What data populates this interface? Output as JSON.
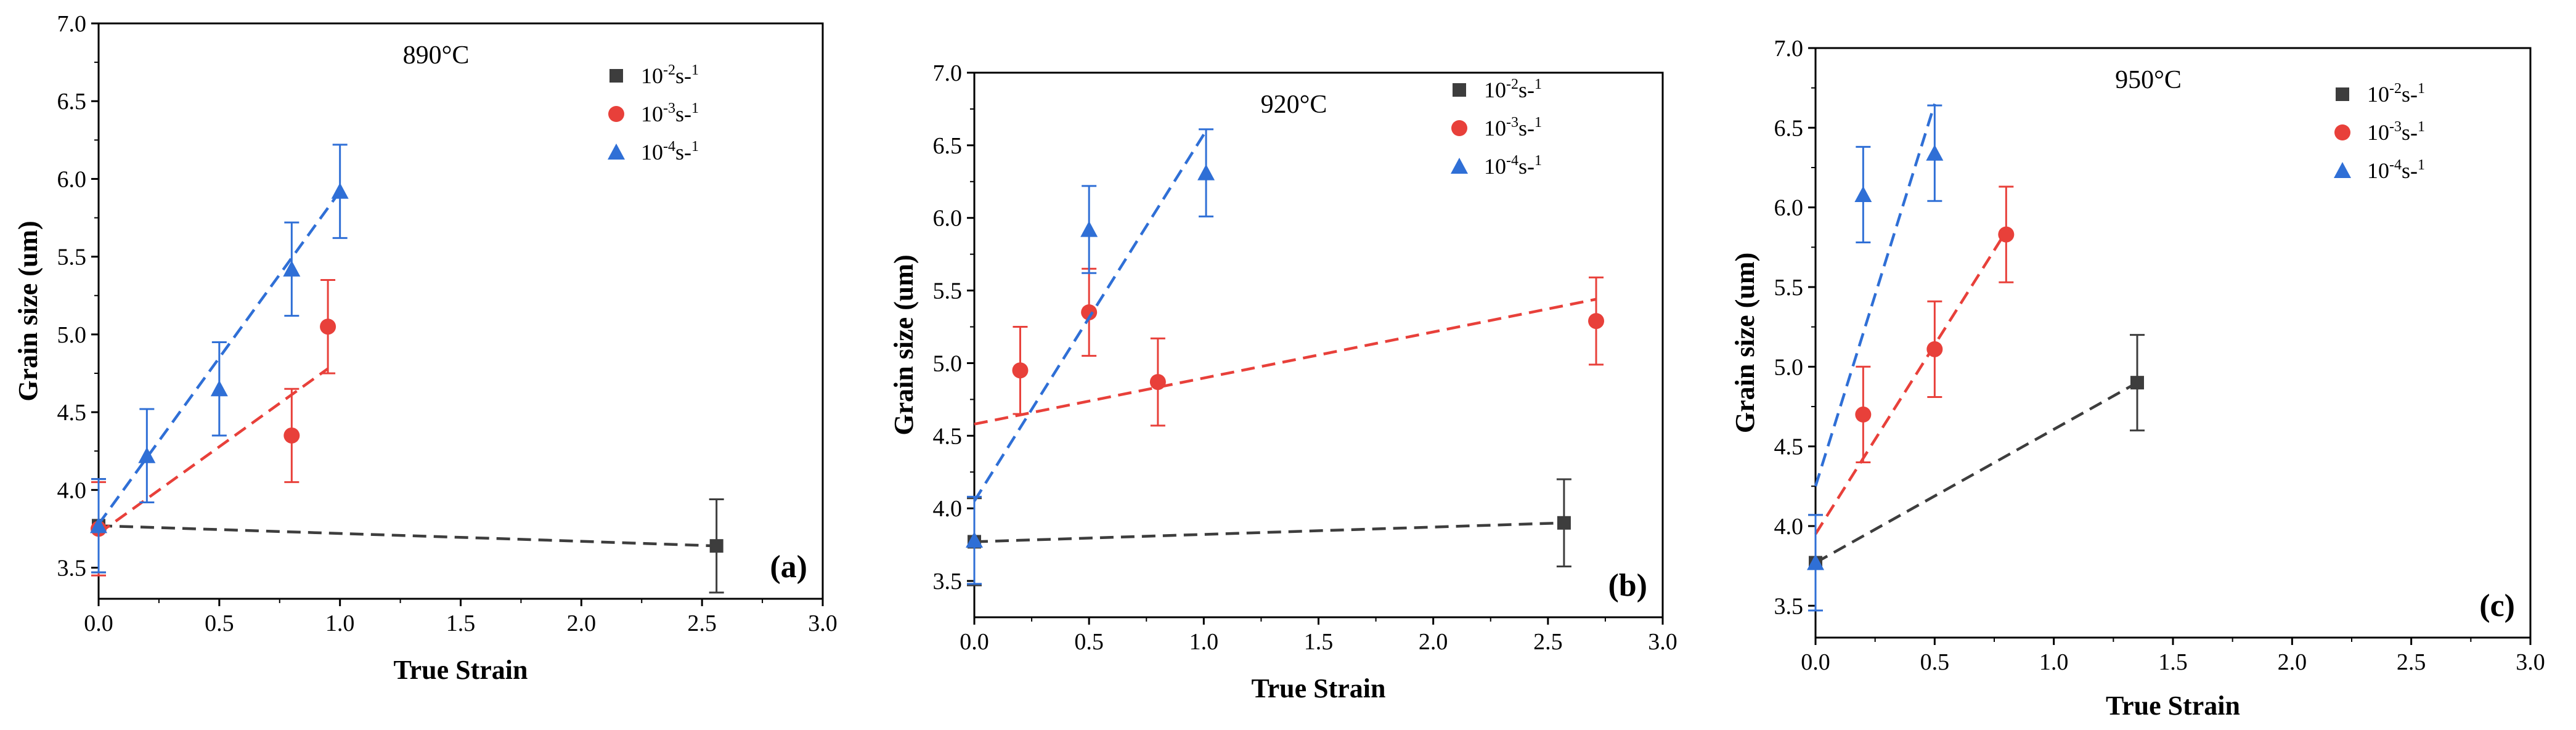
{
  "legend_labels": [
    "10-2s-1",
    "10-3s-1",
    "10-4s-1"
  ],
  "chart_data": [
    {
      "type": "scatter",
      "title": "890°C",
      "panel_label": "(a)",
      "xlabel": "True Strain",
      "ylabel": "Grain size (um)",
      "xlim": [
        0.0,
        3.0
      ],
      "ylim": [
        3.3,
        7.0
      ],
      "xticks": [
        "0.0",
        "0.5",
        "1.0",
        "1.5",
        "2.0",
        "2.5",
        "3.0"
      ],
      "yticks": [
        "3.5",
        "4.0",
        "4.5",
        "5.0",
        "5.5",
        "6.0",
        "6.5",
        "7.0"
      ],
      "grid": false,
      "legend_position": "top-right",
      "series": [
        {
          "name": "10-2s-1",
          "marker": "square",
          "color": "#3d3d3d",
          "points": [
            {
              "x": 0.0,
              "y": 3.77,
              "err": 0.3
            },
            {
              "x": 2.56,
              "y": 3.64,
              "err": 0.3
            }
          ],
          "trend": [
            [
              0.0,
              3.77
            ],
            [
              1.8,
              3.68
            ],
            [
              2.56,
              3.64
            ]
          ]
        },
        {
          "name": "10-3s-1",
          "marker": "circle",
          "color": "#e8403a",
          "points": [
            {
              "x": 0.0,
              "y": 3.75,
              "err": 0.3
            },
            {
              "x": 0.8,
              "y": 4.35,
              "err": 0.3
            },
            {
              "x": 0.95,
              "y": 5.05,
              "err": 0.3
            }
          ],
          "trend": [
            [
              0.0,
              3.72
            ],
            [
              0.95,
              4.78
            ]
          ]
        },
        {
          "name": "10-4s-1",
          "marker": "triangle",
          "color": "#2f6fd6",
          "points": [
            {
              "x": 0.0,
              "y": 3.77,
              "err": 0.3
            },
            {
              "x": 0.2,
              "y": 4.22,
              "err": 0.3
            },
            {
              "x": 0.5,
              "y": 4.65,
              "err": 0.3
            },
            {
              "x": 0.8,
              "y": 5.42,
              "err": 0.3
            },
            {
              "x": 1.0,
              "y": 5.92,
              "err": 0.3
            }
          ],
          "trend": [
            [
              0.0,
              3.78
            ],
            [
              1.0,
              5.92
            ]
          ]
        }
      ]
    },
    {
      "type": "scatter",
      "title": "920°C",
      "panel_label": "(b)",
      "xlabel": "True Strain",
      "ylabel": "Grain size (um)",
      "xlim": [
        0.0,
        3.0
      ],
      "ylim": [
        3.25,
        7.0
      ],
      "xticks": [
        "0.0",
        "0.5",
        "1.0",
        "1.5",
        "2.0",
        "2.5",
        "3.0"
      ],
      "yticks": [
        "3.5",
        "4.0",
        "4.5",
        "5.0",
        "5.5",
        "6.0",
        "6.5",
        "7.0"
      ],
      "grid": false,
      "legend_position": "top-right",
      "series": [
        {
          "name": "10-2s-1",
          "marker": "square",
          "color": "#3d3d3d",
          "points": [
            {
              "x": 0.0,
              "y": 3.77,
              "err": 0.3
            },
            {
              "x": 2.57,
              "y": 3.9,
              "err": 0.3
            }
          ],
          "trend": [
            [
              0.0,
              3.77
            ],
            [
              2.57,
              3.9
            ]
          ]
        },
        {
          "name": "10-3s-1",
          "marker": "circle",
          "color": "#e8403a",
          "points": [
            {
              "x": 0.2,
              "y": 4.95,
              "err": 0.3
            },
            {
              "x": 0.5,
              "y": 5.35,
              "err": 0.3
            },
            {
              "x": 0.8,
              "y": 4.87,
              "err": 0.3
            },
            {
              "x": 2.71,
              "y": 5.29,
              "err": 0.3
            }
          ],
          "trend": [
            [
              0.0,
              4.58
            ],
            [
              2.71,
              5.44
            ]
          ]
        },
        {
          "name": "10-4s-1",
          "marker": "triangle",
          "color": "#2f6fd6",
          "points": [
            {
              "x": 0.0,
              "y": 3.78,
              "err": 0.3
            },
            {
              "x": 0.5,
              "y": 5.92,
              "err": 0.3
            },
            {
              "x": 1.01,
              "y": 6.31,
              "err": 0.3
            }
          ],
          "trend": [
            [
              0.0,
              4.05
            ],
            [
              1.01,
              6.6
            ]
          ]
        }
      ]
    },
    {
      "type": "scatter",
      "title": "950°C",
      "panel_label": "(c)",
      "xlabel": "True Strain",
      "ylabel": "Grain size (um)",
      "xlim": [
        0.0,
        3.0
      ],
      "ylim": [
        3.3,
        7.0
      ],
      "xticks": [
        "0.0",
        "0.5",
        "1.0",
        "1.5",
        "2.0",
        "2.5",
        "3.0"
      ],
      "yticks": [
        "3.5",
        "4.0",
        "4.5",
        "5.0",
        "5.5",
        "6.0",
        "6.5",
        "7.0"
      ],
      "grid": false,
      "legend_position": "top-right",
      "series": [
        {
          "name": "10-2s-1",
          "marker": "square",
          "color": "#3d3d3d",
          "points": [
            {
              "x": 0.0,
              "y": 3.77,
              "err": 0.3
            },
            {
              "x": 1.35,
              "y": 4.9,
              "err": 0.3
            }
          ],
          "trend": [
            [
              0.0,
              3.77
            ],
            [
              1.35,
              4.9
            ]
          ]
        },
        {
          "name": "10-3s-1",
          "marker": "circle",
          "color": "#e8403a",
          "points": [
            {
              "x": 0.2,
              "y": 4.7,
              "err": 0.3
            },
            {
              "x": 0.5,
              "y": 5.11,
              "err": 0.3
            },
            {
              "x": 0.8,
              "y": 5.83,
              "err": 0.3
            }
          ],
          "trend": [
            [
              0.0,
              3.95
            ],
            [
              0.8,
              5.85
            ]
          ]
        },
        {
          "name": "10-4s-1",
          "marker": "triangle",
          "color": "#2f6fd6",
          "points": [
            {
              "x": 0.0,
              "y": 3.77,
              "err": 0.3
            },
            {
              "x": 0.2,
              "y": 6.08,
              "err": 0.3
            },
            {
              "x": 0.5,
              "y": 6.34,
              "err": 0.3
            }
          ],
          "trend": [
            [
              0.0,
              4.25
            ],
            [
              0.5,
              6.65
            ]
          ]
        }
      ]
    }
  ]
}
